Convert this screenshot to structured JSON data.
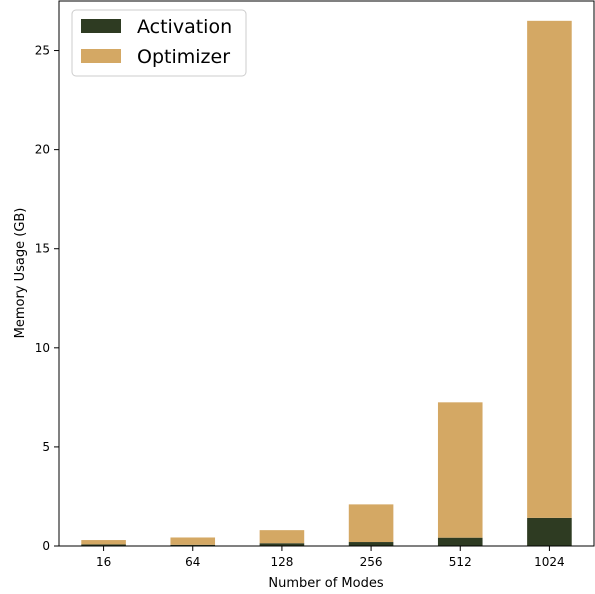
{
  "chart_data": {
    "type": "bar",
    "stacked": true,
    "categories": [
      "16",
      "64",
      "128",
      "256",
      "512",
      "1024"
    ],
    "series": [
      {
        "name": "Activation",
        "color": "#2e3b22",
        "values": [
          0.08,
          0.06,
          0.14,
          0.2,
          0.42,
          1.42
        ]
      },
      {
        "name": "Optimizer",
        "color": "#d4a864",
        "values": [
          0.22,
          0.37,
          0.66,
          1.9,
          6.83,
          25.08
        ]
      }
    ],
    "xlabel": "Number of Modes",
    "ylabel": "Memory Usage (GB)",
    "ylim": [
      0,
      27.5
    ],
    "yticks": [
      0,
      5,
      10,
      15,
      20,
      25
    ],
    "legend_position": "top-left",
    "grid": false
  }
}
